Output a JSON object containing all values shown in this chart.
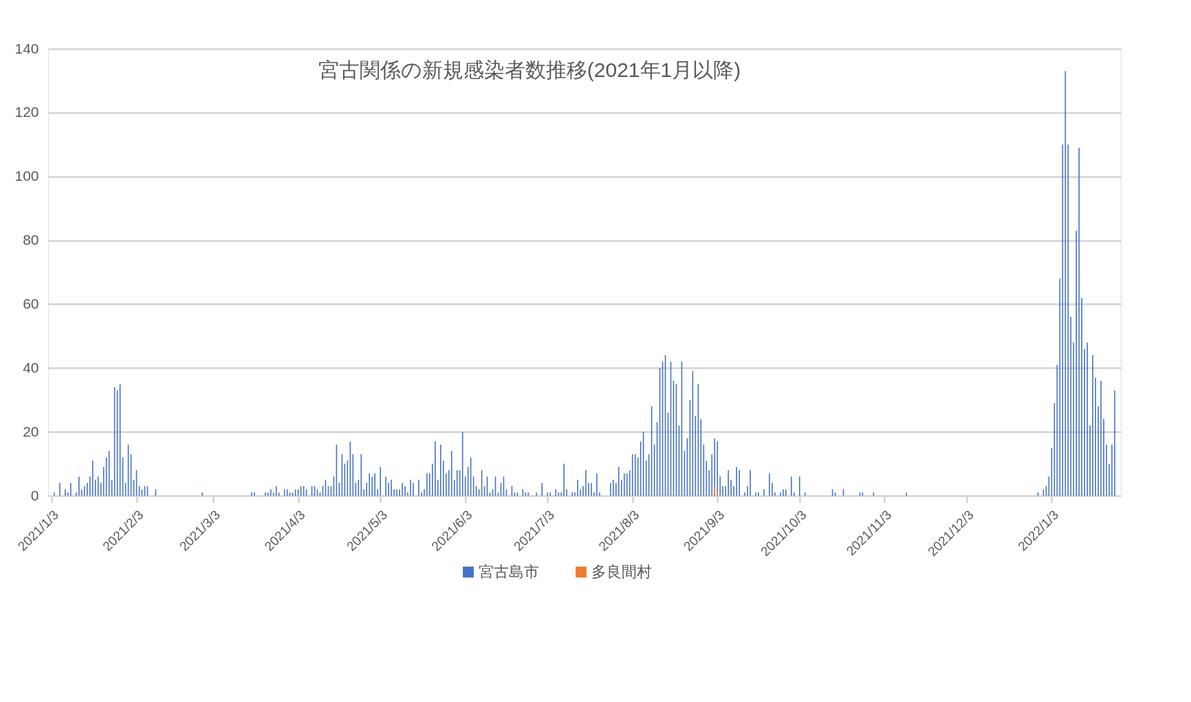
{
  "chart_data": {
    "type": "bar",
    "title": "宮古関係の新規感染者数推移(2021年1月以降)",
    "xlim": [
      "2021-01-03",
      "2022-01-27"
    ],
    "xticks": [
      {
        "value": "2021-01-03",
        "label": "2021/1/3"
      },
      {
        "value": "2021-02-03",
        "label": "2021/2/3"
      },
      {
        "value": "2021-03-03",
        "label": "2021/3/3"
      },
      {
        "value": "2021-04-03",
        "label": "2021/4/3"
      },
      {
        "value": "2021-05-03",
        "label": "2021/5/3"
      },
      {
        "value": "2021-06-03",
        "label": "2021/6/3"
      },
      {
        "value": "2021-07-03",
        "label": "2021/7/3"
      },
      {
        "value": "2021-08-03",
        "label": "2021/8/3"
      },
      {
        "value": "2021-09-03",
        "label": "2021/9/3"
      },
      {
        "value": "2021-10-03",
        "label": "2021/10/3"
      },
      {
        "value": "2021-11-03",
        "label": "2021/11/3"
      },
      {
        "value": "2021-12-03",
        "label": "2021/12/3"
      },
      {
        "value": "2022-01-03",
        "label": "2022/1/3"
      }
    ],
    "ylim": [
      0,
      140
    ],
    "yticks": [
      0,
      20,
      40,
      60,
      80,
      100,
      120,
      140
    ],
    "grid": "y",
    "legend": "bottom",
    "series": [
      {
        "name": "宮古島市",
        "color": "#4472c4",
        "x": [
          "2021-01-04",
          "2021-01-06",
          "2021-01-08",
          "2021-01-09",
          "2021-01-10",
          "2021-01-12",
          "2021-01-13",
          "2021-01-14",
          "2021-01-15",
          "2021-01-16",
          "2021-01-17",
          "2021-01-18",
          "2021-01-19",
          "2021-01-20",
          "2021-01-21",
          "2021-01-22",
          "2021-01-23",
          "2021-01-24",
          "2021-01-25",
          "2021-01-26",
          "2021-01-27",
          "2021-01-28",
          "2021-01-29",
          "2021-01-30",
          "2021-01-31",
          "2021-02-01",
          "2021-02-02",
          "2021-02-03",
          "2021-02-04",
          "2021-02-05",
          "2021-02-06",
          "2021-02-07",
          "2021-02-10",
          "2021-02-27",
          "2021-03-17",
          "2021-03-18",
          "2021-03-22",
          "2021-03-23",
          "2021-03-24",
          "2021-03-25",
          "2021-03-26",
          "2021-03-27",
          "2021-03-29",
          "2021-03-30",
          "2021-03-31",
          "2021-04-01",
          "2021-04-02",
          "2021-04-03",
          "2021-04-04",
          "2021-04-05",
          "2021-04-06",
          "2021-04-08",
          "2021-04-09",
          "2021-04-10",
          "2021-04-11",
          "2021-04-12",
          "2021-04-13",
          "2021-04-14",
          "2021-04-15",
          "2021-04-16",
          "2021-04-17",
          "2021-04-18",
          "2021-04-19",
          "2021-04-20",
          "2021-04-21",
          "2021-04-22",
          "2021-04-23",
          "2021-04-24",
          "2021-04-25",
          "2021-04-26",
          "2021-04-27",
          "2021-04-28",
          "2021-04-29",
          "2021-04-30",
          "2021-05-01",
          "2021-05-02",
          "2021-05-03",
          "2021-05-05",
          "2021-05-06",
          "2021-05-07",
          "2021-05-08",
          "2021-05-09",
          "2021-05-10",
          "2021-05-11",
          "2021-05-12",
          "2021-05-13",
          "2021-05-14",
          "2021-05-15",
          "2021-05-17",
          "2021-05-18",
          "2021-05-19",
          "2021-05-20",
          "2021-05-21",
          "2021-05-22",
          "2021-05-23",
          "2021-05-24",
          "2021-05-25",
          "2021-05-26",
          "2021-05-27",
          "2021-05-28",
          "2021-05-29",
          "2021-05-30",
          "2021-05-31",
          "2021-06-01",
          "2021-06-02",
          "2021-06-03",
          "2021-06-04",
          "2021-06-05",
          "2021-06-06",
          "2021-06-07",
          "2021-06-08",
          "2021-06-09",
          "2021-06-10",
          "2021-06-11",
          "2021-06-12",
          "2021-06-13",
          "2021-06-14",
          "2021-06-15",
          "2021-06-16",
          "2021-06-17",
          "2021-06-18",
          "2021-06-20",
          "2021-06-21",
          "2021-06-22",
          "2021-06-24",
          "2021-06-25",
          "2021-06-26",
          "2021-06-29",
          "2021-07-01",
          "2021-07-03",
          "2021-07-04",
          "2021-07-06",
          "2021-07-07",
          "2021-07-08",
          "2021-07-09",
          "2021-07-10",
          "2021-07-12",
          "2021-07-13",
          "2021-07-14",
          "2021-07-15",
          "2021-07-16",
          "2021-07-17",
          "2021-07-18",
          "2021-07-19",
          "2021-07-20",
          "2021-07-21",
          "2021-07-22",
          "2021-07-26",
          "2021-07-27",
          "2021-07-28",
          "2021-07-29",
          "2021-07-30",
          "2021-07-31",
          "2021-08-01",
          "2021-08-02",
          "2021-08-03",
          "2021-08-04",
          "2021-08-05",
          "2021-08-06",
          "2021-08-07",
          "2021-08-08",
          "2021-08-09",
          "2021-08-10",
          "2021-08-11",
          "2021-08-12",
          "2021-08-13",
          "2021-08-14",
          "2021-08-15",
          "2021-08-16",
          "2021-08-17",
          "2021-08-18",
          "2021-08-19",
          "2021-08-20",
          "2021-08-21",
          "2021-08-22",
          "2021-08-23",
          "2021-08-24",
          "2021-08-25",
          "2021-08-26",
          "2021-08-27",
          "2021-08-28",
          "2021-08-29",
          "2021-08-30",
          "2021-08-31",
          "2021-09-01",
          "2021-09-02",
          "2021-09-03",
          "2021-09-04",
          "2021-09-05",
          "2021-09-06",
          "2021-09-07",
          "2021-09-08",
          "2021-09-09",
          "2021-09-10",
          "2021-09-11",
          "2021-09-13",
          "2021-09-14",
          "2021-09-15",
          "2021-09-17",
          "2021-09-18",
          "2021-09-20",
          "2021-09-22",
          "2021-09-23",
          "2021-09-24",
          "2021-09-26",
          "2021-09-27",
          "2021-09-28",
          "2021-09-30",
          "2021-10-01",
          "2021-10-03",
          "2021-10-05",
          "2021-10-15",
          "2021-10-16",
          "2021-10-19",
          "2021-10-25",
          "2021-10-26",
          "2021-10-30",
          "2021-11-11",
          "2021-12-29",
          "2021-12-31",
          "2022-01-01",
          "2022-01-02",
          "2022-01-03",
          "2022-01-04",
          "2022-01-05",
          "2022-01-06",
          "2022-01-07",
          "2022-01-08",
          "2022-01-09",
          "2022-01-10",
          "2022-01-11",
          "2022-01-12",
          "2022-01-13",
          "2022-01-14",
          "2022-01-15",
          "2022-01-16",
          "2022-01-17",
          "2022-01-18",
          "2022-01-19",
          "2022-01-20",
          "2022-01-21",
          "2022-01-22",
          "2022-01-23",
          "2022-01-24",
          "2022-01-25",
          "2022-01-26"
        ],
        "values": [
          1,
          4,
          2,
          1,
          4,
          1,
          6,
          2,
          3,
          4,
          6,
          11,
          5,
          6,
          4,
          9,
          12,
          14,
          5,
          34,
          33,
          35,
          12,
          4,
          16,
          13,
          5,
          8,
          3,
          2,
          3,
          3,
          2,
          1,
          1,
          1,
          1,
          1,
          2,
          1,
          3,
          1,
          2,
          2,
          1,
          1,
          2,
          2,
          3,
          3,
          2,
          3,
          3,
          2,
          1,
          3,
          5,
          3,
          3,
          6,
          16,
          4,
          13,
          10,
          11,
          17,
          13,
          4,
          5,
          13,
          2,
          4,
          7,
          6,
          7,
          2,
          9,
          6,
          4,
          5,
          2,
          2,
          2,
          4,
          3,
          1,
          5,
          4,
          5,
          1,
          2,
          7,
          7,
          10,
          17,
          5,
          16,
          11,
          7,
          8,
          14,
          5,
          8,
          8,
          20,
          6,
          9,
          12,
          6,
          3,
          2,
          8,
          3,
          6,
          1,
          2,
          6,
          1,
          4,
          6,
          2,
          3,
          1,
          1,
          2,
          1,
          1,
          1,
          4,
          1,
          1,
          2,
          1,
          1,
          10,
          2,
          1,
          1,
          5,
          2,
          3,
          8,
          4,
          4,
          1,
          7,
          1,
          4,
          5,
          4,
          9,
          5,
          7,
          7,
          8,
          13,
          13,
          12,
          17,
          20,
          11,
          13,
          28,
          16,
          23,
          40,
          42,
          44,
          26,
          42,
          36,
          35,
          22,
          42,
          14,
          18,
          30,
          39,
          25,
          35,
          24,
          16,
          11,
          8,
          13,
          18,
          17,
          6,
          3,
          3,
          8,
          5,
          3,
          9,
          8,
          1,
          3,
          8,
          1,
          1,
          2,
          7,
          4,
          1,
          1,
          2,
          2,
          6,
          1,
          6,
          1,
          2,
          1,
          2,
          1,
          1,
          1,
          1,
          1,
          2,
          3,
          6,
          15,
          29,
          41,
          68,
          110,
          133,
          110,
          56,
          48,
          83,
          109,
          62,
          46,
          48,
          22,
          44,
          37,
          28,
          36,
          24,
          16,
          10,
          16,
          33
        ]
      },
      {
        "name": "多良間村",
        "color": "#ed7d31",
        "x": [
          "2021-09-02",
          "2021-09-03"
        ],
        "values": [
          3,
          1
        ]
      }
    ]
  }
}
